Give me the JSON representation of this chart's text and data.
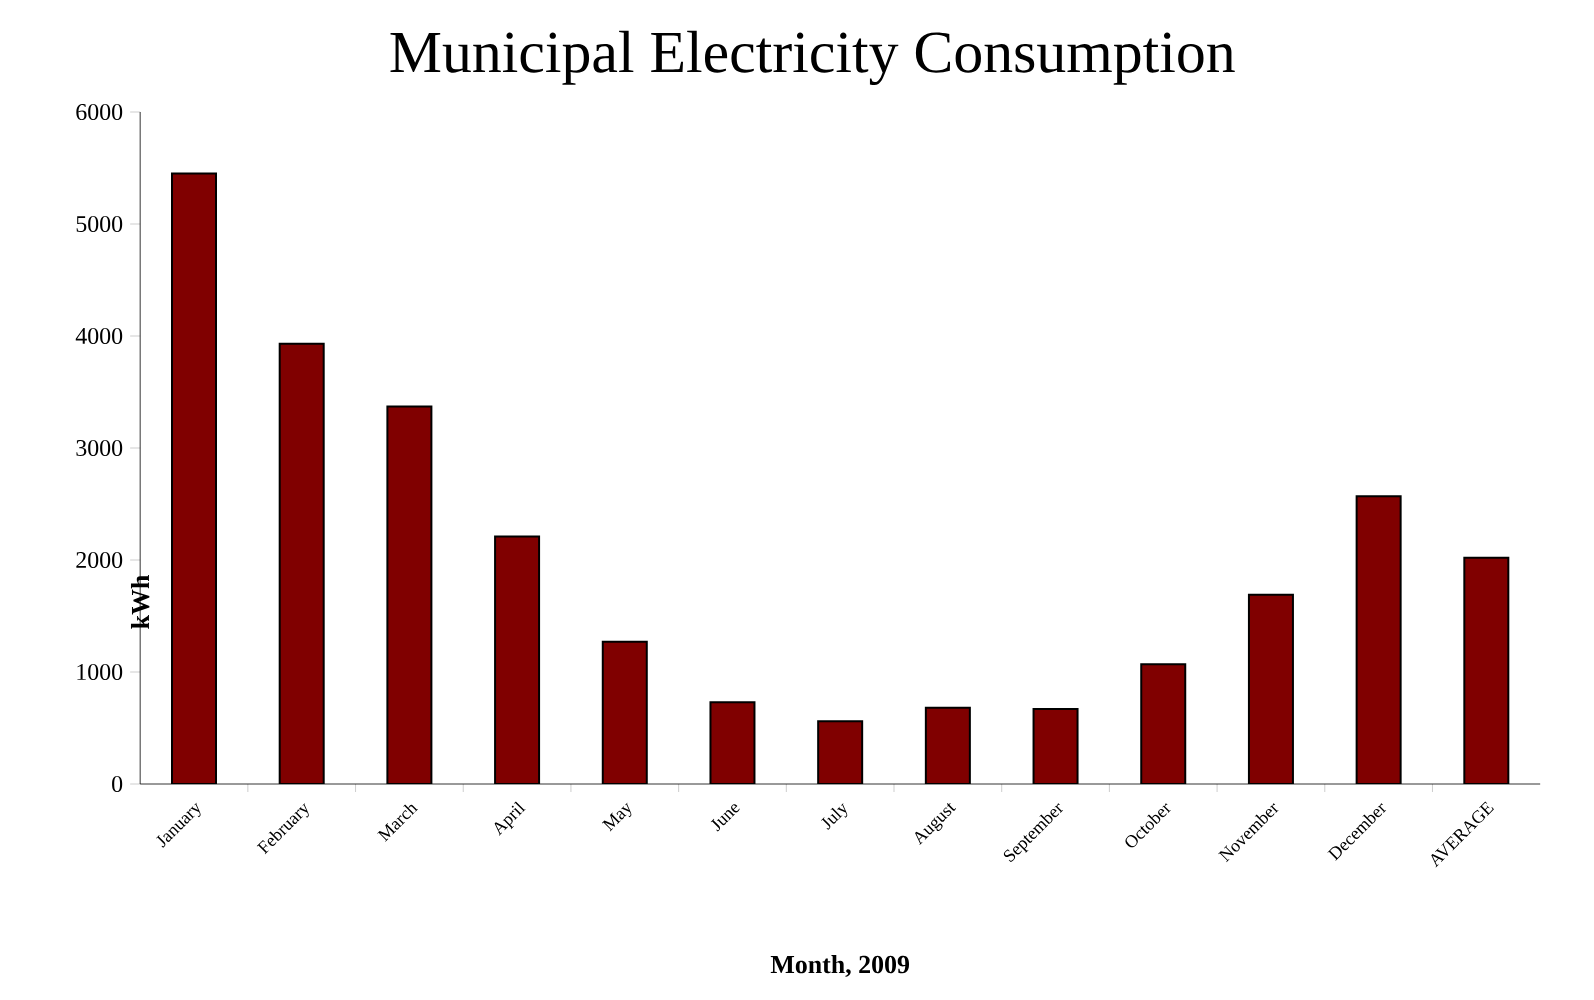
{
  "chart_data": {
    "type": "bar",
    "title": "Municipal Electricity Consumption",
    "xlabel": "Month, 2009",
    "ylabel": "kWh",
    "categories": [
      "January",
      "February",
      "March",
      "April",
      "May",
      "June",
      "July",
      "August",
      "September",
      "October",
      "November",
      "December",
      "AVERAGE"
    ],
    "values": [
      5450,
      3930,
      3370,
      2210,
      1270,
      730,
      560,
      680,
      670,
      1070,
      1690,
      2570,
      2020
    ],
    "color": "#800000",
    "ylim": [
      0,
      6000
    ],
    "yticks": [
      0,
      1000,
      2000,
      3000,
      4000,
      5000,
      6000
    ]
  }
}
